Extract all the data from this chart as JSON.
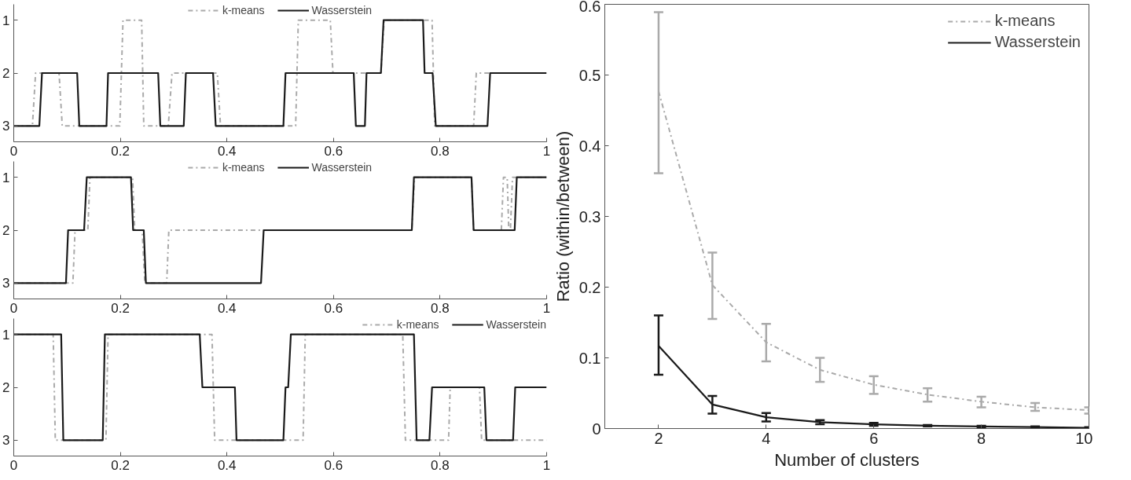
{
  "chart_data": [
    {
      "type": "line",
      "xlim": [
        0,
        1
      ],
      "xticks": [
        0,
        0.2,
        0.4,
        0.6,
        0.8,
        1
      ],
      "ylim": [
        3.3,
        0.7
      ],
      "yticks": [
        1,
        2,
        3
      ],
      "legend": "top",
      "grid": false,
      "marker": "none",
      "series": [
        {
          "name": "k-means",
          "color": "#aaaaaa",
          "line_style": "dashed",
          "x": [
            0,
            0.035,
            0.041,
            0.085,
            0.091,
            0.199,
            0.205,
            0.24,
            0.244,
            0.29,
            0.297,
            0.382,
            0.388,
            0.529,
            0.534,
            0.594,
            0.599,
            0.689,
            0.695,
            0.785,
            0.79,
            0.863,
            0.868,
            1
          ],
          "values": [
            3,
            3,
            2,
            2,
            3,
            3,
            1,
            1,
            3,
            3,
            2,
            2,
            3,
            3,
            1,
            1,
            2,
            2,
            1,
            1,
            3,
            3,
            2,
            2
          ]
        },
        {
          "name": "Wasserstein",
          "color": "#1a1a1a",
          "line_style": "solid",
          "x": [
            0,
            0.048,
            0.053,
            0.119,
            0.123,
            0.174,
            0.177,
            0.271,
            0.275,
            0.319,
            0.323,
            0.374,
            0.379,
            0.506,
            0.51,
            0.638,
            0.642,
            0.659,
            0.662,
            0.689,
            0.694,
            0.768,
            0.771,
            0.786,
            0.792,
            0.889,
            0.894,
            1
          ],
          "values": [
            3,
            3,
            2,
            2,
            3,
            3,
            2,
            2,
            3,
            3,
            2,
            2,
            3,
            3,
            2,
            2,
            3,
            3,
            2,
            2,
            1,
            1,
            2,
            2,
            3,
            3,
            2,
            2
          ]
        }
      ]
    },
    {
      "type": "line",
      "xlim": [
        0,
        1
      ],
      "xticks": [
        0,
        0.2,
        0.4,
        0.6,
        0.8,
        1
      ],
      "ylim": [
        3.3,
        0.7
      ],
      "yticks": [
        1,
        2,
        3
      ],
      "legend": "top",
      "grid": false,
      "marker": "none",
      "series": [
        {
          "name": "k-means",
          "color": "#aaaaaa",
          "line_style": "dashed",
          "x": [
            0,
            0.111,
            0.115,
            0.139,
            0.143,
            0.223,
            0.227,
            0.241,
            0.246,
            0.287,
            0.291,
            0.747,
            0.752,
            0.859,
            0.863,
            0.915,
            0.919,
            0.926,
            0.929,
            0.932,
            0.936,
            1
          ],
          "values": [
            3,
            3,
            2,
            2,
            1,
            1,
            2,
            2,
            3,
            3,
            2,
            2,
            1,
            1,
            2,
            2,
            1,
            1,
            2,
            2,
            1,
            1
          ]
        },
        {
          "name": "Wasserstein",
          "color": "#1a1a1a",
          "line_style": "solid",
          "x": [
            0,
            0.098,
            0.102,
            0.132,
            0.137,
            0.22,
            0.224,
            0.244,
            0.248,
            0.464,
            0.469,
            0.747,
            0.751,
            0.859,
            0.863,
            0.94,
            0.944,
            1
          ],
          "values": [
            3,
            3,
            2,
            2,
            1,
            1,
            2,
            2,
            3,
            3,
            2,
            2,
            1,
            1,
            2,
            2,
            1,
            1
          ]
        }
      ]
    },
    {
      "type": "line",
      "xlim": [
        0,
        1
      ],
      "xticks": [
        0,
        0.2,
        0.4,
        0.6,
        0.8,
        1
      ],
      "ylim": [
        3.3,
        0.7
      ],
      "yticks": [
        1,
        2,
        3
      ],
      "legend": "top right",
      "grid": false,
      "marker": "none",
      "series": [
        {
          "name": "k-means",
          "color": "#aaaaaa",
          "line_style": "dashed",
          "x": [
            0,
            0.074,
            0.078,
            0.173,
            0.177,
            0.372,
            0.377,
            0.543,
            0.547,
            0.73,
            0.735,
            0.816,
            0.819,
            0.874,
            0.878,
            1
          ],
          "values": [
            1,
            1,
            3,
            3,
            1,
            1,
            3,
            3,
            1,
            1,
            3,
            3,
            2,
            2,
            3,
            3
          ]
        },
        {
          "name": "Wasserstein",
          "color": "#1a1a1a",
          "line_style": "solid",
          "x": [
            0,
            0.089,
            0.093,
            0.167,
            0.171,
            0.349,
            0.354,
            0.415,
            0.418,
            0.506,
            0.51,
            0.515,
            0.52,
            0.751,
            0.756,
            0.78,
            0.785,
            0.883,
            0.887,
            0.937,
            0.941,
            1
          ],
          "values": [
            1,
            1,
            3,
            3,
            1,
            1,
            2,
            2,
            3,
            3,
            2,
            2,
            1,
            1,
            3,
            3,
            2,
            2,
            3,
            3,
            2,
            2
          ]
        }
      ]
    },
    {
      "type": "line",
      "xlabel": "Number of clusters",
      "ylabel": "Ratio (within/between)",
      "xlim": [
        1,
        10
      ],
      "xticks": [
        2,
        4,
        6,
        8,
        10
      ],
      "ylim": [
        0,
        0.6
      ],
      "yticks": [
        0,
        0.1,
        0.2,
        0.3,
        0.4,
        0.5,
        0.6
      ],
      "legend": "top right",
      "grid": false,
      "marker": "none",
      "x": [
        2,
        3,
        4,
        5,
        6,
        7,
        8,
        9,
        10
      ],
      "series": [
        {
          "name": "k-means",
          "color": "#aaaaaa",
          "line_style": "dashed",
          "values": [
            0.477,
            0.203,
            0.122,
            0.083,
            0.062,
            0.048,
            0.038,
            0.03,
            0.026
          ],
          "errors": [
            [
              0.361,
              0.589
            ],
            [
              0.155,
              0.249
            ],
            [
              0.095,
              0.148
            ],
            [
              0.066,
              0.1
            ],
            [
              0.049,
              0.074
            ],
            [
              0.038,
              0.057
            ],
            [
              0.03,
              0.045
            ],
            [
              0.025,
              0.036
            ],
            [
              0.021,
              0.03
            ]
          ]
        },
        {
          "name": "Wasserstein",
          "color": "#1a1a1a",
          "line_style": "solid",
          "values": [
            0.117,
            0.034,
            0.016,
            0.009,
            0.006,
            0.004,
            0.003,
            0.002,
            0.001
          ],
          "errors": [
            [
              0.076,
              0.16
            ],
            [
              0.021,
              0.046
            ],
            [
              0.01,
              0.022
            ],
            [
              0.006,
              0.012
            ],
            [
              0.004,
              0.008
            ],
            [
              0.003,
              0.005
            ],
            [
              0.002,
              0.004
            ],
            [
              0.001,
              0.003
            ],
            [
              0.0,
              0.002
            ]
          ]
        }
      ]
    }
  ]
}
